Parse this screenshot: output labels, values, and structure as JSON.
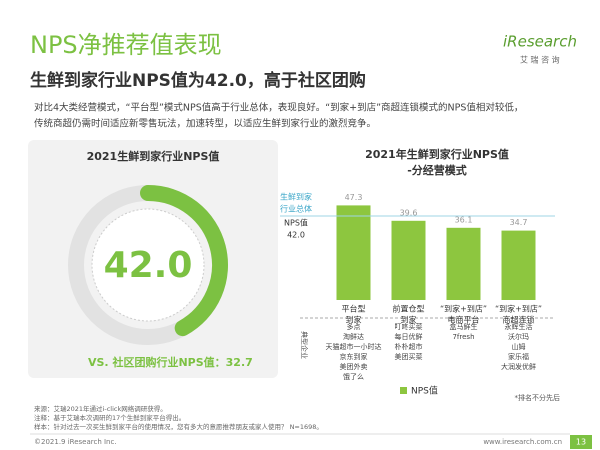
{
  "header": {
    "title": "NPS净推荐值表现",
    "subtitle": "生鲜到家行业NPS值为42.0，高于社区团购",
    "description": [
      "对比4大类经营模式，“平台型”模式NPS值高于行业总体，表现良好。“到家+到店”商超连锁模式的NPS值相对较低，",
      "传统商超仍需时间适应新零售玩法，加速转型，以适应生鲜到家行业的激烈竞争。"
    ]
  },
  "logo": {
    "brand": "iResearch",
    "cn": "艾 瑞 咨 询"
  },
  "chart_data": [
    {
      "type": "gauge",
      "title": "2021生鲜到家行业NPS值",
      "value": 42.0,
      "value_label": "42.0",
      "ylim": [
        0,
        100
      ],
      "color": "#7cc142",
      "comparison": "VS. 社区团购行业NPS值：32.7"
    },
    {
      "type": "bar",
      "title": [
        "2021年生鲜到家行业NPS值",
        "-分经营模式"
      ],
      "categories": [
        [
          "平台型",
          "到家"
        ],
        [
          "前置仓型",
          "到家"
        ],
        [
          "“到家+到店”",
          "电商平台"
        ],
        [
          "“到家+到店”",
          "商超连锁"
        ]
      ],
      "series": [
        {
          "name": "NPS值",
          "color": "#8dc63f",
          "values": [
            47.3,
            39.6,
            36.1,
            34.7
          ]
        }
      ],
      "ylim": [
        0,
        50
      ],
      "reference": {
        "lines": [
          "生鲜到家",
          "行业总体"
        ],
        "label": "NPS值",
        "value": 42.0,
        "value_label": "42.0",
        "color": "#3aa6c8"
      },
      "companies_label": "典型企业",
      "companies": [
        [
          "多点",
          "淘鲜达",
          "天猫超市一小时达",
          "京东到家",
          "美团外卖",
          "饿了么"
        ],
        [
          "叮咚买菜",
          "每日优鲜",
          "朴朴超市",
          "美团买菜"
        ],
        [
          "盒马鲜生",
          "7fresh"
        ],
        [
          "永辉生活",
          "沃尔玛",
          "山姆",
          "家乐福",
          "大润发优鲜"
        ]
      ],
      "note": "*排名不分先后"
    }
  ],
  "footnotes": [
    "来源：艾瑞2021年通过i-click网络调研获得。",
    "注释：基于艾瑞本次调研的17个生鲜到家平台得出。",
    "样本：针对过去一次买生鲜到家平台的使用情况，您有多大的意愿推荐朋友或家人使用？ N=1698。"
  ],
  "footer": {
    "copyright": "©2021.9 iResearch Inc.",
    "url": "www.iresearch.com.cn",
    "page": 13
  }
}
